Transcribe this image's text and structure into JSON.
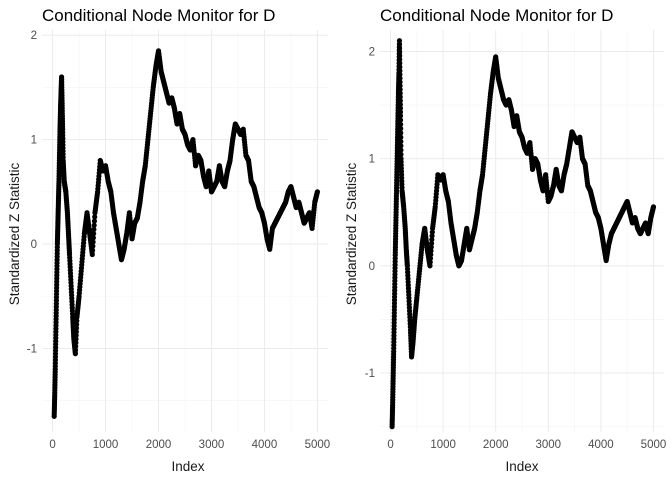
{
  "chart_data": [
    {
      "type": "scatter",
      "title": "Conditional Node Monitor for D",
      "xlabel": "Index",
      "ylabel": "Standardized Z Statistic",
      "xlim": [
        -200,
        5200
      ],
      "ylim": [
        -1.8,
        2.05
      ],
      "x_ticks": [
        0,
        1000,
        2000,
        3000,
        4000,
        5000
      ],
      "x_tick_labels": [
        "0",
        "1000",
        "2000",
        "3000",
        "4000",
        "5000"
      ],
      "y_ticks": [
        -1,
        0,
        1,
        2
      ],
      "y_tick_labels": [
        "-1",
        "0",
        "1",
        "2"
      ],
      "grid": true,
      "marker_color": "#000000",
      "x": [
        30,
        40,
        50,
        60,
        70,
        80,
        90,
        100,
        110,
        120,
        130,
        140,
        150,
        160,
        170,
        180,
        190,
        200,
        220,
        250,
        280,
        300,
        320,
        350,
        380,
        400,
        430,
        460,
        500,
        550,
        600,
        650,
        700,
        750,
        800,
        850,
        900,
        950,
        1000,
        1050,
        1100,
        1150,
        1200,
        1250,
        1300,
        1350,
        1400,
        1450,
        1500,
        1550,
        1600,
        1650,
        1700,
        1750,
        1800,
        1850,
        1900,
        1950,
        2000,
        2050,
        2100,
        2150,
        2200,
        2250,
        2300,
        2350,
        2400,
        2450,
        2500,
        2550,
        2600,
        2650,
        2700,
        2750,
        2800,
        2850,
        2900,
        2950,
        3000,
        3050,
        3100,
        3150,
        3200,
        3250,
        3300,
        3350,
        3400,
        3450,
        3500,
        3550,
        3600,
        3650,
        3700,
        3750,
        3800,
        3850,
        3900,
        3950,
        4000,
        4050,
        4100,
        4150,
        4200,
        4250,
        4300,
        4350,
        4400,
        4450,
        4500,
        4550,
        4600,
        4650,
        4700,
        4750,
        4800,
        4850,
        4900,
        4950,
        5000
      ],
      "y": [
        -1.65,
        -1.45,
        -1.2,
        -0.9,
        -0.6,
        -0.3,
        0.0,
        0.2,
        0.4,
        0.6,
        0.85,
        1.1,
        1.3,
        1.45,
        1.6,
        1.35,
        1.1,
        0.8,
        0.6,
        0.5,
        0.3,
        0.1,
        -0.1,
        -0.4,
        -0.7,
        -0.9,
        -1.05,
        -0.7,
        -0.5,
        -0.2,
        0.1,
        0.3,
        0.1,
        -0.1,
        0.3,
        0.5,
        0.8,
        0.7,
        0.75,
        0.6,
        0.5,
        0.3,
        0.15,
        0.0,
        -0.15,
        -0.05,
        0.1,
        0.3,
        0.05,
        0.2,
        0.25,
        0.4,
        0.6,
        0.75,
        1.0,
        1.25,
        1.5,
        1.7,
        1.85,
        1.65,
        1.55,
        1.45,
        1.35,
        1.4,
        1.3,
        1.15,
        1.25,
        1.1,
        1.05,
        0.95,
        0.9,
        1.0,
        0.75,
        0.85,
        0.8,
        0.65,
        0.55,
        0.7,
        0.5,
        0.55,
        0.6,
        0.75,
        0.6,
        0.55,
        0.7,
        0.8,
        1.0,
        1.15,
        1.1,
        1.05,
        1.1,
        0.85,
        0.8,
        0.6,
        0.55,
        0.45,
        0.35,
        0.3,
        0.2,
        0.05,
        -0.05,
        0.15,
        0.2,
        0.25,
        0.3,
        0.35,
        0.4,
        0.5,
        0.55,
        0.45,
        0.35,
        0.4,
        0.3,
        0.2,
        0.25,
        0.3,
        0.15,
        0.4,
        0.5
      ]
    },
    {
      "type": "scatter",
      "title": "Conditional Node Monitor for D",
      "xlabel": "Index",
      "ylabel": "Standardized Z Statistic",
      "xlim": [
        -200,
        5200
      ],
      "ylim": [
        -1.55,
        2.2
      ],
      "x_ticks": [
        0,
        1000,
        2000,
        3000,
        4000,
        5000
      ],
      "x_tick_labels": [
        "0",
        "1000",
        "2000",
        "3000",
        "4000",
        "5000"
      ],
      "y_ticks": [
        -1,
        0,
        1,
        2
      ],
      "y_tick_labels": [
        "-1",
        "0",
        "1",
        "2"
      ],
      "grid": true,
      "marker_color": "#000000",
      "x": [
        30,
        40,
        50,
        60,
        70,
        80,
        90,
        100,
        110,
        120,
        130,
        140,
        150,
        160,
        170,
        180,
        190,
        200,
        220,
        250,
        280,
        300,
        320,
        350,
        380,
        400,
        430,
        460,
        500,
        550,
        600,
        650,
        700,
        750,
        800,
        850,
        900,
        950,
        1000,
        1050,
        1100,
        1150,
        1200,
        1250,
        1300,
        1350,
        1400,
        1450,
        1500,
        1550,
        1600,
        1650,
        1700,
        1750,
        1800,
        1850,
        1900,
        1950,
        2000,
        2050,
        2100,
        2150,
        2200,
        2250,
        2300,
        2350,
        2400,
        2450,
        2500,
        2550,
        2600,
        2650,
        2700,
        2750,
        2800,
        2850,
        2900,
        2950,
        3000,
        3050,
        3100,
        3150,
        3200,
        3250,
        3300,
        3350,
        3400,
        3450,
        3500,
        3550,
        3600,
        3650,
        3700,
        3750,
        3800,
        3850,
        3900,
        3950,
        4000,
        4050,
        4100,
        4150,
        4200,
        4250,
        4300,
        4350,
        4400,
        4450,
        4500,
        4550,
        4600,
        4650,
        4700,
        4750,
        4800,
        4850,
        4900,
        4950,
        5000
      ],
      "y": [
        -1.5,
        -1.3,
        -1.05,
        -0.8,
        -0.5,
        -0.2,
        0.1,
        0.35,
        0.6,
        0.85,
        1.1,
        1.35,
        1.6,
        1.8,
        2.1,
        1.75,
        1.4,
        1.0,
        0.7,
        0.55,
        0.35,
        0.15,
        0.0,
        -0.3,
        -0.6,
        -0.85,
        -0.7,
        -0.5,
        -0.3,
        -0.05,
        0.2,
        0.35,
        0.15,
        0.0,
        0.35,
        0.55,
        0.85,
        0.8,
        0.85,
        0.7,
        0.6,
        0.4,
        0.25,
        0.1,
        0.0,
        0.05,
        0.2,
        0.35,
        0.15,
        0.25,
        0.35,
        0.5,
        0.7,
        0.85,
        1.1,
        1.35,
        1.6,
        1.8,
        1.95,
        1.75,
        1.65,
        1.55,
        1.5,
        1.55,
        1.45,
        1.3,
        1.4,
        1.25,
        1.2,
        1.1,
        1.05,
        1.15,
        0.9,
        1.0,
        0.95,
        0.8,
        0.7,
        0.85,
        0.6,
        0.65,
        0.75,
        0.9,
        0.75,
        0.7,
        0.85,
        0.95,
        1.1,
        1.25,
        1.2,
        1.15,
        1.2,
        1.0,
        0.95,
        0.75,
        0.7,
        0.6,
        0.5,
        0.45,
        0.35,
        0.2,
        0.05,
        0.2,
        0.3,
        0.35,
        0.4,
        0.45,
        0.5,
        0.55,
        0.6,
        0.5,
        0.4,
        0.45,
        0.35,
        0.3,
        0.35,
        0.4,
        0.3,
        0.45,
        0.55
      ]
    }
  ]
}
